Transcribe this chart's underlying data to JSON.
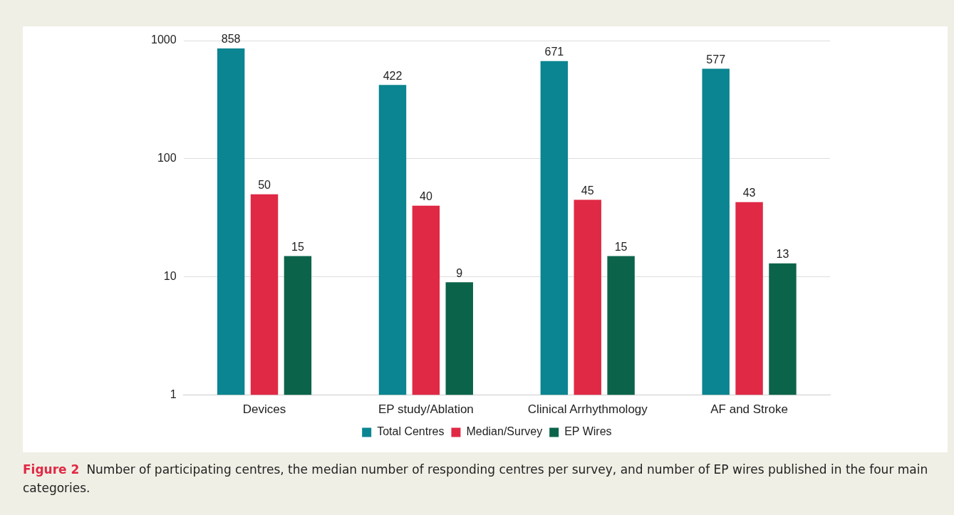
{
  "chart_data": {
    "type": "bar",
    "categories": [
      "Devices",
      "EP study/Ablation",
      "Clinical Arrhythmology",
      "AF and Stroke"
    ],
    "series": [
      {
        "name": "Total Centres",
        "color": "#0a8591",
        "values": [
          858,
          422,
          671,
          577
        ]
      },
      {
        "name": "Median/Survey",
        "color": "#e02945",
        "values": [
          50,
          40,
          45,
          43
        ]
      },
      {
        "name": "EP Wires",
        "color": "#0b644a",
        "values": [
          15,
          9,
          15,
          13
        ]
      }
    ],
    "log": true,
    "ylim": [
      1,
      1000
    ],
    "yticks": [
      1,
      10,
      100,
      1000
    ],
    "grid": "y",
    "legend": "bottom",
    "data_labels": true,
    "annotations": [
      "Figure 2",
      "Number of participating centres, the median number of responding centres per survey, and number of EP wires published in the four main categories."
    ]
  }
}
